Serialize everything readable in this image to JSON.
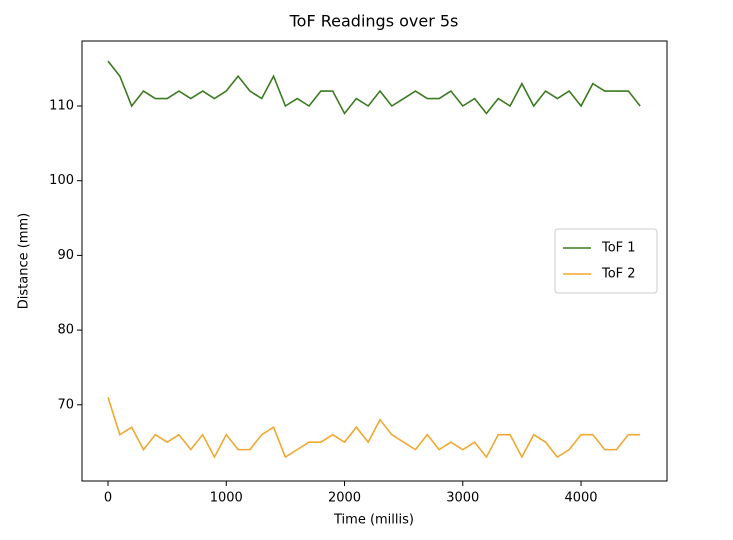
{
  "chart_data": {
    "type": "line",
    "title": "ToF Readings over 5s",
    "x_label": "Time (millis)",
    "y_label": "Distance (mm)",
    "x": [
      0,
      100,
      200,
      300,
      400,
      500,
      600,
      700,
      800,
      900,
      1000,
      1100,
      1200,
      1300,
      1400,
      1500,
      1600,
      1700,
      1800,
      1900,
      2000,
      2100,
      2200,
      2300,
      2400,
      2500,
      2600,
      2700,
      2800,
      2900,
      3000,
      3100,
      3200,
      3300,
      3400,
      3500,
      3600,
      3700,
      3800,
      3900,
      4000,
      4100,
      4200,
      4300,
      4400,
      4500
    ],
    "series": [
      {
        "name": "ToF 1",
        "color": "#3b7a1f",
        "values": [
          116,
          114,
          110,
          112,
          111,
          111,
          112,
          111,
          112,
          111,
          112,
          114,
          112,
          111,
          114,
          110,
          111,
          110,
          112,
          112,
          109,
          111,
          110,
          112,
          110,
          111,
          112,
          111,
          111,
          112,
          110,
          111,
          109,
          111,
          110,
          113,
          110,
          112,
          111,
          112,
          110,
          113,
          112,
          112,
          112,
          110
        ]
      },
      {
        "name": "ToF 2",
        "color": "#f0a830",
        "values": [
          71,
          66,
          67,
          64,
          66,
          65,
          66,
          64,
          66,
          63,
          66,
          64,
          64,
          66,
          67,
          63,
          64,
          65,
          65,
          66,
          65,
          67,
          65,
          68,
          66,
          65,
          64,
          66,
          64,
          65,
          64,
          65,
          63,
          66,
          66,
          63,
          66,
          65,
          63,
          64,
          66,
          66,
          64,
          64,
          66,
          66
        ]
      }
    ],
    "xlim": [
      -220,
      4727
    ],
    "ylim": [
      59.8,
      118.7
    ],
    "xticks": [
      0,
      1000,
      2000,
      3000,
      4000
    ],
    "yticks": [
      70,
      80,
      90,
      100,
      110
    ],
    "legend": "center right"
  }
}
